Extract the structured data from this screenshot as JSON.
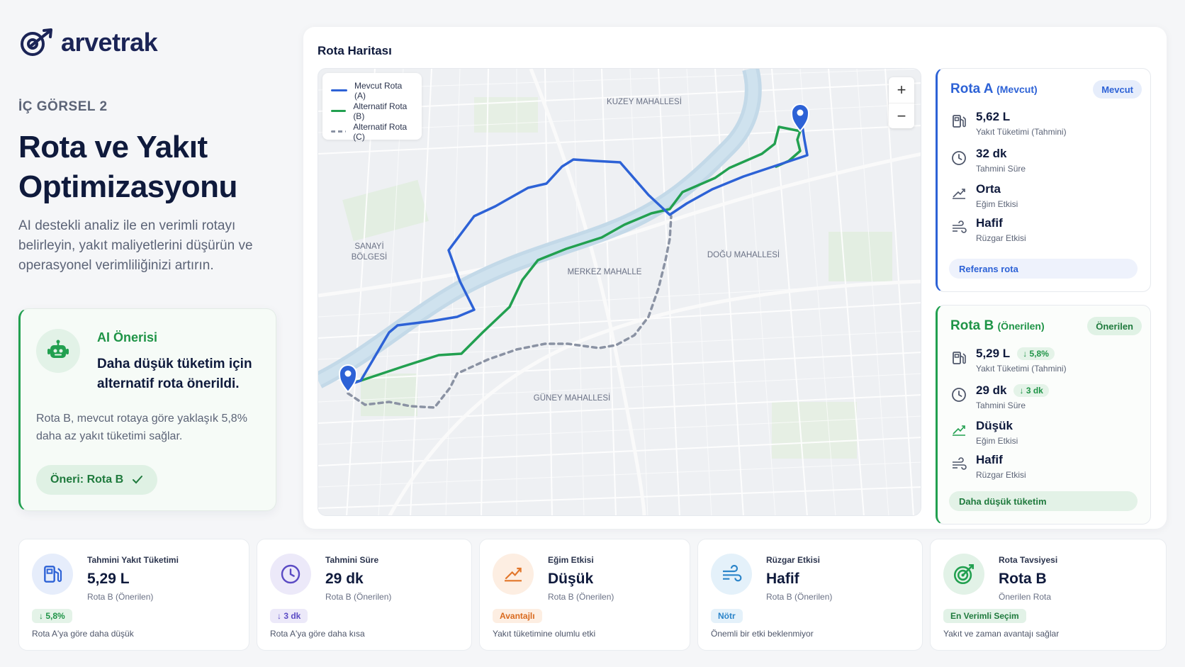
{
  "brand": {
    "name": "arvetrak"
  },
  "hero": {
    "kicker": "İÇ GÖRSEL 2",
    "title": "Rota ve Yakıt Optimizasyonu",
    "description": "AI destekli analiz ile en verimli rotayı belirleyin, yakıt maliyetlerini düşürün ve operasyonel verimliliğinizi artırın."
  },
  "ai": {
    "title": "AI Önerisi",
    "headline": "Daha düşük tüketim için alternatif rota önerildi.",
    "body": "Rota B, mevcut rotaya göre yaklaşık 5,8% daha az yakıt tüketimi sağlar.",
    "button": "Öneri: Rota B"
  },
  "map": {
    "title": "Rota Haritası",
    "legend": [
      {
        "label": "Mevcut Rota (A)",
        "color": "#2d62d6",
        "dashed": false
      },
      {
        "label": "Alternatif Rota (B)",
        "color": "#22a050",
        "dashed": false
      },
      {
        "label": "Alternatif Rota (C)",
        "color": "#8a92a3",
        "dashed": true
      }
    ],
    "zoom_in": "+",
    "zoom_out": "−",
    "areas": {
      "north": "KUZEY MAHALLESİ",
      "sanayi1": "SANAYİ",
      "sanayi2": "BÖLGESİ",
      "center": "MERKEZ MAHALLE",
      "east": "DOĞU MAHALLESİ",
      "south": "GÜNEY MAHALLESİ"
    }
  },
  "route_a": {
    "name": "Rota A",
    "tag": "(Mevcut)",
    "badge": "Mevcut",
    "accent": "#2d62d6",
    "metrics": [
      {
        "icon": "fuel-pump-icon",
        "value": "5,62 L",
        "label": "Yakıt Tüketimi (Tahmini)",
        "delta": ""
      },
      {
        "icon": "clock-icon",
        "value": "32 dk",
        "label": "Tahmini Süre",
        "delta": ""
      },
      {
        "icon": "slope-icon",
        "value": "Orta",
        "label": "Eğim Etkisi",
        "delta": ""
      },
      {
        "icon": "wind-icon",
        "value": "Hafif",
        "label": "Rüzgar Etkisi",
        "delta": ""
      }
    ],
    "footer": "Referans rota"
  },
  "route_b": {
    "name": "Rota B",
    "tag": "(Önerilen)",
    "badge": "Önerilen",
    "accent": "#22a050",
    "metrics": [
      {
        "icon": "fuel-pump-icon",
        "value": "5,29 L",
        "label": "Yakıt Tüketimi (Tahmini)",
        "delta": "↓ 5,8%"
      },
      {
        "icon": "clock-icon",
        "value": "29 dk",
        "label": "Tahmini Süre",
        "delta": "↓ 3 dk"
      },
      {
        "icon": "slope-icon",
        "value": "Düşük",
        "label": "Eğim Etkisi",
        "delta": ""
      },
      {
        "icon": "wind-icon",
        "value": "Hafif",
        "label": "Rüzgar Etkisi",
        "delta": ""
      }
    ],
    "footer": "Daha düşük tüketim"
  },
  "stats": [
    {
      "icon": "fuel-pump-icon",
      "label": "Tahmini Yakıt Tüketimi",
      "value": "5,29 L",
      "sub": "Rota B (Önerilen)",
      "tag": "↓ 5,8%",
      "foot": "Rota A'ya göre daha düşük",
      "color": "#2d62d6"
    },
    {
      "icon": "clock-icon",
      "label": "Tahmini Süre",
      "value": "29 dk",
      "sub": "Rota B (Önerilen)",
      "tag": "↓ 3 dk",
      "foot": "Rota A'ya göre daha kısa",
      "color": "#5b4bc4"
    },
    {
      "icon": "slope-icon",
      "label": "Eğim Etkisi",
      "value": "Düşük",
      "sub": "Rota B (Önerilen)",
      "tag": "Avantajlı",
      "foot": "Yakıt tüketimine olumlu etki",
      "color": "#e2762a"
    },
    {
      "icon": "wind-icon",
      "label": "Rüzgar Etkisi",
      "value": "Hafif",
      "sub": "Rota B (Önerilen)",
      "tag": "Nötr",
      "foot": "Önemli bir etki beklenmiyor",
      "color": "#2b84c9"
    },
    {
      "icon": "target-icon",
      "label": "Rota Tavsiyesi",
      "value": "Rota B",
      "sub": "Önerilen Rota",
      "tag": "En Verimli Seçim",
      "foot": "Yakıt ve zaman avantajı sağlar",
      "color": "#22a050"
    }
  ]
}
